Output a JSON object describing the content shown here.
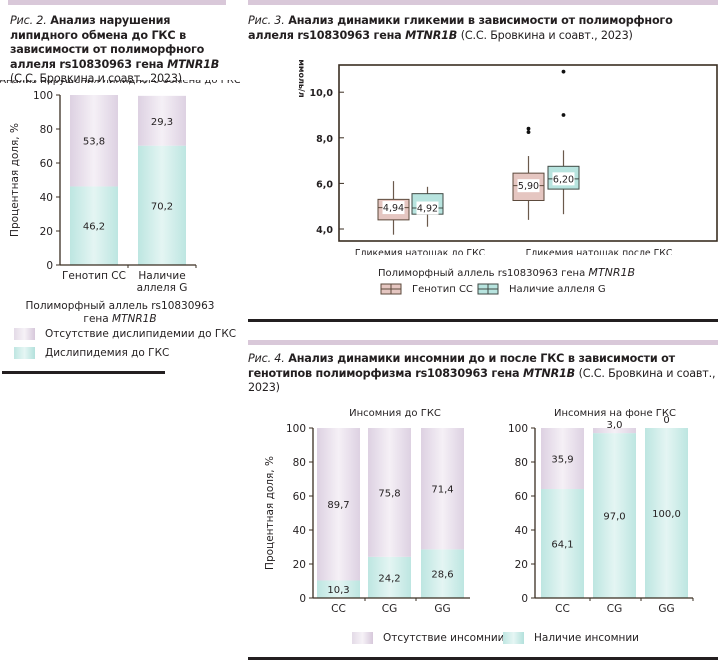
{
  "colors": {
    "absent": "#e2d7e6",
    "present": "#c4e9e5",
    "cc_box": "#e5c6c1",
    "g_box": "#b8e4df",
    "axis": "#3a2e22",
    "band": "#d9c8d9"
  },
  "fig2": {
    "caption_prefix": "Рис. 2.",
    "caption_bold": "Анализ нарушения липидного обмена до ГКС в зависимости от полиморфного аллеля rs10830963 гена",
    "caption_gene": "MTNR1B",
    "caption_source": "(С.С. Бровкина и соавт., 2023)",
    "legend": [
      {
        "label": "Отсутствие дислипидемии до ГКС",
        "swatch": "absent"
      },
      {
        "label": "Дислипидемия до ГКС",
        "swatch": "present"
      }
    ]
  },
  "fig3": {
    "caption_prefix": "Рис. 3.",
    "caption_bold": "Анализ динамики гликемии в зависимости от полиморфного аллеля rs10830963 гена",
    "caption_gene": "MTNR1B",
    "caption_source": "(С.С. Бровкина и соавт., 2023)",
    "legend_title": "Полиморфный аллель rs10830963 гена",
    "legend_title_gene": "MTNR1B",
    "legend": [
      {
        "label": "Генотип СС",
        "swatch": "cc_box"
      },
      {
        "label": "Наличие аллеля G",
        "swatch": "g_box"
      }
    ]
  },
  "fig4": {
    "caption_prefix": "Рис. 4.",
    "caption_bold": "Анализ динамики инсомнии до и после ГКС в зависимости от генотипов полиморфизма rs10830963 гена",
    "caption_gene": "MTNR1B",
    "caption_source": "(С.С. Бровкина и соавт., 2023)",
    "legend": [
      {
        "label": "Отсутствие инсомнии",
        "swatch": "absent"
      },
      {
        "label": "Наличие инсомнии",
        "swatch": "present"
      }
    ]
  },
  "chart_data": [
    {
      "id": "fig2",
      "type": "bar",
      "stacked": true,
      "title": "Анализ нарушения липидного обмена до ГКС",
      "xlabel": "Полиморфный аллель rs10830963 гена MTNR1B",
      "ylabel": "Процентная доля, %",
      "ylim": [
        0,
        100
      ],
      "yticks": [
        0,
        20,
        40,
        60,
        80,
        100
      ],
      "categories": [
        "Генотип СС",
        "Наличие аллеля G"
      ],
      "series": [
        {
          "name": "Дислипидемия до ГКС",
          "values": [
            46.2,
            70.2
          ],
          "labels": [
            "46,2",
            "70,2"
          ],
          "color": "present"
        },
        {
          "name": "Отсутствие дислипидемии до ГКС",
          "values": [
            53.8,
            29.3
          ],
          "labels": [
            "53,8",
            "29,3"
          ],
          "color": "absent"
        }
      ],
      "legend_position": "bottom"
    },
    {
      "id": "fig3",
      "type": "boxplot",
      "title": "Анализ динамики гликемии",
      "xlabel": "Полиморфный аллель rs10830963 гена MTNR1B",
      "ylabel": "ммоль/л",
      "ylim": [
        3.5,
        11.2
      ],
      "yticks": [
        4.0,
        6.0,
        8.0,
        10.0
      ],
      "ytick_labels": [
        "4,0",
        "6,0",
        "8,0",
        "10,0"
      ],
      "categories": [
        "Гликемия натощак до ГКС",
        "Гликемия натощак после ГКС"
      ],
      "series": [
        {
          "name": "Генотип СС",
          "color": "cc_box",
          "boxes": [
            {
              "whisker_low": 3.75,
              "q1": 4.4,
              "median": 4.94,
              "q3": 5.3,
              "whisker_high": 6.1,
              "median_label": "4,94",
              "outliers": []
            },
            {
              "whisker_low": 4.4,
              "q1": 5.25,
              "median": 5.9,
              "q3": 6.45,
              "whisker_high": 7.2,
              "median_label": "5,90",
              "outliers": [
                8.25,
                8.4
              ]
            }
          ]
        },
        {
          "name": "Наличие аллеля G",
          "color": "g_box",
          "boxes": [
            {
              "whisker_low": 4.1,
              "q1": 4.65,
              "median": 4.92,
              "q3": 5.55,
              "whisker_high": 5.85,
              "median_label": "4,92",
              "outliers": []
            },
            {
              "whisker_low": 4.65,
              "q1": 5.75,
              "median": 6.2,
              "q3": 6.75,
              "whisker_high": 7.45,
              "median_label": "6,20",
              "outliers": [
                9.0,
                10.9
              ]
            }
          ]
        }
      ],
      "legend_position": "bottom"
    },
    {
      "id": "fig4a",
      "type": "bar",
      "stacked": true,
      "title": "Инсомния до ГКС",
      "ylabel": "Процентная доля, %",
      "ylim": [
        0,
        100
      ],
      "yticks": [
        0,
        20,
        40,
        60,
        80,
        100
      ],
      "categories": [
        "CC",
        "CG",
        "GG"
      ],
      "series": [
        {
          "name": "Наличие инсомнии",
          "values": [
            10.3,
            24.2,
            28.6
          ],
          "labels": [
            "10,3",
            "24,2",
            "28,6"
          ],
          "color": "present"
        },
        {
          "name": "Отсутствие инсомнии",
          "values": [
            89.7,
            75.8,
            71.4
          ],
          "labels": [
            "89,7",
            "75,8",
            "71,4"
          ],
          "color": "absent"
        }
      ]
    },
    {
      "id": "fig4b",
      "type": "bar",
      "stacked": true,
      "title": "Инсомния на фоне ГКС",
      "ylim": [
        0,
        100
      ],
      "yticks": [
        0,
        20,
        40,
        60,
        80,
        100
      ],
      "categories": [
        "CC",
        "CG",
        "GG"
      ],
      "series": [
        {
          "name": "Наличие инсомнии",
          "values": [
            64.1,
            97.0,
            100.0
          ],
          "labels": [
            "64,1",
            "97,0",
            "100,0"
          ],
          "color": "present"
        },
        {
          "name": "Отсутствие инсомнии",
          "values": [
            35.9,
            3.0,
            0
          ],
          "labels": [
            "35,9",
            "3,0",
            "0"
          ],
          "color": "absent"
        }
      ]
    }
  ]
}
